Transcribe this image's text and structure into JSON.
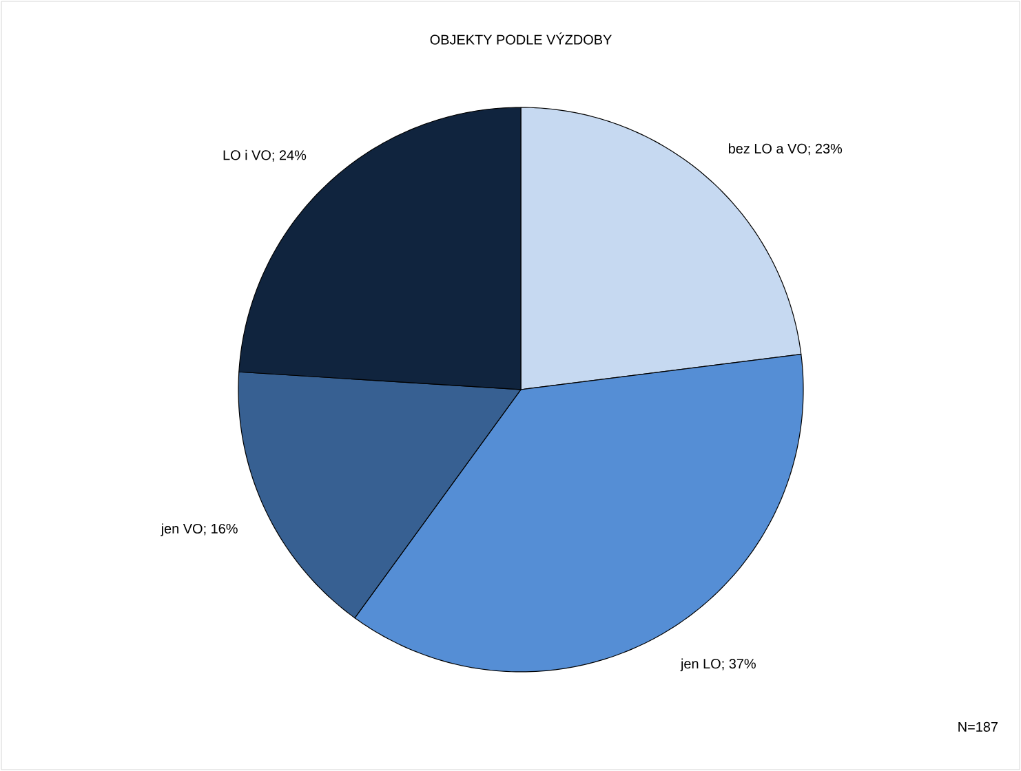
{
  "chart_data": {
    "type": "pie",
    "title": "OBJEKTY PODLE VÝZDOBY",
    "categories": [
      "bez LO a VO",
      "jen LO",
      "jen VO",
      "LO i VO"
    ],
    "values": [
      23,
      37,
      16,
      24
    ],
    "colors": [
      "#c6d9f1",
      "#558ed5",
      "#376092",
      "#10243e"
    ],
    "value_labels": [
      "; 23%",
      "; 37%",
      "; 16%",
      "; 24%"
    ],
    "annotations": [
      "N=187"
    ]
  }
}
